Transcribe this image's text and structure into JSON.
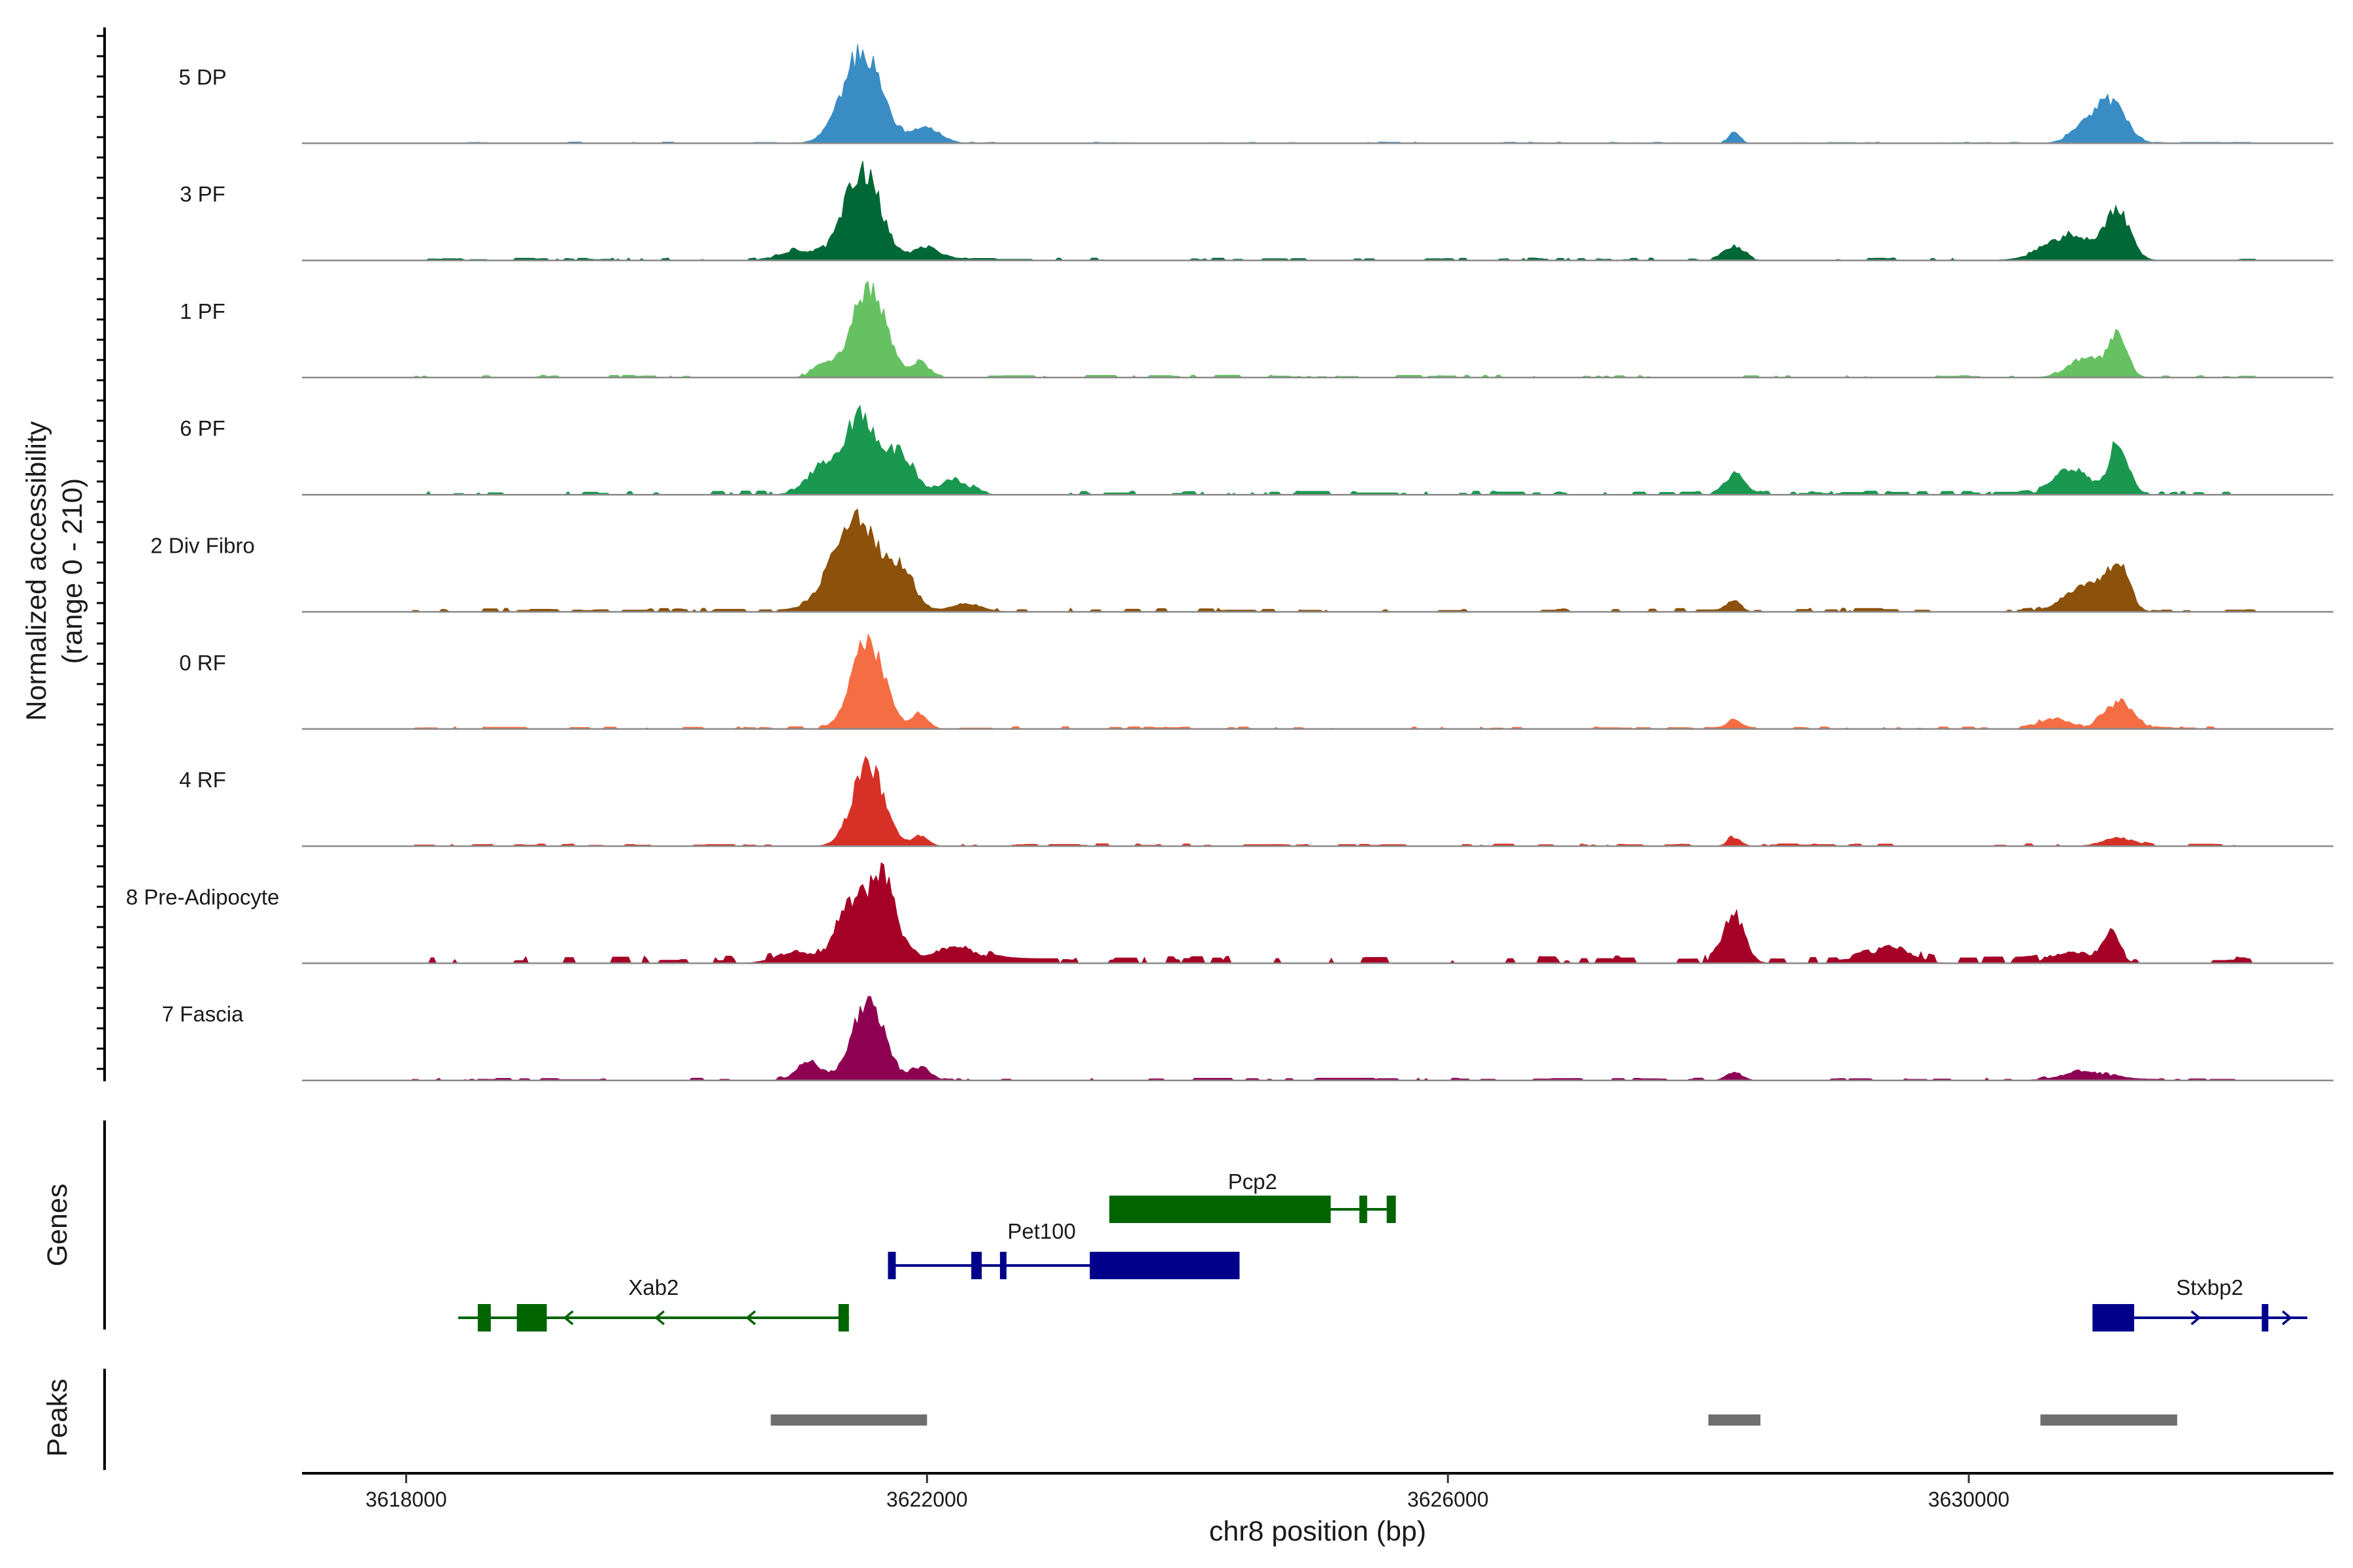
{
  "chart_data": {
    "type": "area",
    "title": "",
    "ylabel_line1": "Normalized accessibility",
    "ylabel_line2": "(range 0 - 210)",
    "xlabel": "chr8 position (bp)",
    "xlim": [
      3617200,
      3632800
    ],
    "ylim": [
      0,
      210
    ],
    "x_ticks": [
      3618000,
      3622000,
      3626000,
      3630000
    ],
    "x_tick_labels": [
      "3618000",
      "3622000",
      "3626000",
      "3630000"
    ],
    "tracks": [
      {
        "name": "5 DP",
        "color": "#3A8DC4",
        "noise": 0.01,
        "seed": 11,
        "peaks": [
          [
            3621500,
            110,
            150
          ],
          [
            3622000,
            18,
            110
          ],
          [
            3628200,
            16,
            40
          ],
          [
            3630900,
            22,
            110
          ],
          [
            3631100,
            46,
            110
          ]
        ]
      },
      {
        "name": "3 PF",
        "color": "#006837",
        "noise": 0.02,
        "seed": 23,
        "peaks": [
          [
            3621000,
            12,
            120
          ],
          [
            3621500,
            108,
            140
          ],
          [
            3622000,
            16,
            100
          ],
          [
            3628200,
            18,
            70
          ],
          [
            3630800,
            30,
            200
          ],
          [
            3631150,
            55,
            90
          ]
        ]
      },
      {
        "name": "1 PF",
        "color": "#66C163",
        "noise": 0.02,
        "seed": 37,
        "peaks": [
          [
            3621200,
            14,
            80
          ],
          [
            3621550,
            108,
            130
          ],
          [
            3621950,
            18,
            60
          ],
          [
            3630900,
            24,
            130
          ],
          [
            3631150,
            50,
            70
          ]
        ]
      },
      {
        "name": "6 PF",
        "color": "#1A9850",
        "noise": 0.03,
        "seed": 41,
        "peaks": [
          [
            3621200,
            34,
            120
          ],
          [
            3621500,
            92,
            120
          ],
          [
            3621800,
            48,
            100
          ],
          [
            3622200,
            16,
            120
          ],
          [
            3628200,
            24,
            70
          ],
          [
            3630800,
            30,
            130
          ],
          [
            3631150,
            66,
            70
          ]
        ]
      },
      {
        "name": "2 Div Fibro",
        "color": "#8C510A",
        "noise": 0.03,
        "seed": 53,
        "peaks": [
          [
            3621450,
            118,
            170
          ],
          [
            3621800,
            40,
            110
          ],
          [
            3622300,
            10,
            120
          ],
          [
            3628200,
            14,
            50
          ],
          [
            3630900,
            32,
            160
          ],
          [
            3631150,
            50,
            80
          ]
        ]
      },
      {
        "name": "0 RF",
        "color": "#F46D43",
        "noise": 0.02,
        "seed": 61,
        "peaks": [
          [
            3621550,
            106,
            120
          ],
          [
            3621950,
            18,
            60
          ],
          [
            3628200,
            10,
            50
          ],
          [
            3630650,
            12,
            110
          ],
          [
            3631150,
            32,
            110
          ]
        ]
      },
      {
        "name": "4 RF",
        "color": "#D73027",
        "noise": 0.02,
        "seed": 73,
        "peaks": [
          [
            3621550,
            98,
            120
          ],
          [
            3621950,
            12,
            60
          ],
          [
            3628200,
            10,
            50
          ],
          [
            3631150,
            10,
            120
          ]
        ]
      },
      {
        "name": "8 Pre-Adipocyte",
        "color": "#A50026",
        "noise": 0.06,
        "seed": 89,
        "peaks": [
          [
            3621000,
            14,
            150
          ],
          [
            3621400,
            70,
            100
          ],
          [
            3621650,
            100,
            100
          ],
          [
            3622200,
            18,
            200
          ],
          [
            3628200,
            58,
            80
          ],
          [
            3629400,
            20,
            150
          ],
          [
            3630800,
            14,
            150
          ],
          [
            3631100,
            32,
            60
          ]
        ]
      },
      {
        "name": "7 Fascia",
        "color": "#8E0152",
        "noise": 0.02,
        "seed": 97,
        "peaks": [
          [
            3621100,
            20,
            100
          ],
          [
            3621550,
            96,
            120
          ],
          [
            3621950,
            14,
            80
          ],
          [
            3628200,
            10,
            60
          ],
          [
            3630900,
            10,
            180
          ]
        ]
      }
    ],
    "genes_label": "Genes",
    "genes": [
      {
        "name": "Pcp2",
        "strand": "-",
        "color": "#006400",
        "start": 3623400,
        "end": 3625600,
        "exons": [
          [
            3623400,
            3625100
          ],
          [
            3625320,
            3625380
          ],
          [
            3625530,
            3625600
          ]
        ]
      },
      {
        "name": "Pet100",
        "strand": "+",
        "color": "#00008B",
        "start": 3621700,
        "end": 3624400,
        "exons": [
          [
            3621700,
            3621760
          ],
          [
            3622340,
            3622420
          ],
          [
            3622560,
            3622590
          ],
          [
            3623250,
            3624400
          ]
        ]
      },
      {
        "name": "Xab2",
        "strand": "-",
        "color": "#006400",
        "start": 3618400,
        "end": 3621400,
        "exons": [
          [
            3618550,
            3618650
          ],
          [
            3618850,
            3619080
          ],
          [
            3621320,
            3621400
          ]
        ]
      },
      {
        "name": "Stxbp2",
        "strand": "+",
        "color": "#00008B",
        "start": 3630950,
        "end": 3632600,
        "exons": [
          [
            3630950,
            3631270
          ],
          [
            3632250,
            3632280
          ]
        ]
      }
    ],
    "peaks_label": "Peaks",
    "peak_regions": [
      [
        3620800,
        3622000
      ],
      [
        3628000,
        3628400
      ],
      [
        3630550,
        3631600
      ]
    ],
    "peak_color": "#6E6E6E"
  }
}
